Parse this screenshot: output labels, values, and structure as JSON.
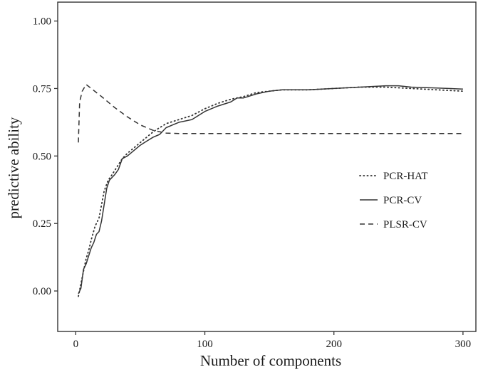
{
  "chart_data": {
    "type": "line",
    "title": "",
    "xlabel": "Number of components",
    "ylabel": "predictive ability",
    "xlim": [
      -14,
      310
    ],
    "ylim": [
      -0.15,
      1.07
    ],
    "x_ticks": [
      0,
      100,
      200,
      300
    ],
    "x_tick_labels": [
      "0",
      "100",
      "200",
      "300"
    ],
    "y_ticks": [
      0,
      0.25,
      0.5,
      0.75,
      1.0
    ],
    "y_tick_labels": [
      "0.00",
      "0.25",
      "0.50",
      "0.75",
      "1.00"
    ],
    "grid": false,
    "legend_position": "right",
    "series": [
      {
        "name": "PCR-HAT",
        "style": "dotted",
        "color": "#333333",
        "points": [
          [
            2,
            -0.02
          ],
          [
            5,
            0.05
          ],
          [
            8,
            0.12
          ],
          [
            10,
            0.15
          ],
          [
            12,
            0.19
          ],
          [
            15,
            0.24
          ],
          [
            18,
            0.27
          ],
          [
            20,
            0.32
          ],
          [
            22,
            0.37
          ],
          [
            25,
            0.41
          ],
          [
            28,
            0.43
          ],
          [
            32,
            0.46
          ],
          [
            36,
            0.49
          ],
          [
            40,
            0.51
          ],
          [
            45,
            0.53
          ],
          [
            50,
            0.55
          ],
          [
            55,
            0.57
          ],
          [
            60,
            0.59
          ],
          [
            70,
            0.62
          ],
          [
            80,
            0.635
          ],
          [
            90,
            0.65
          ],
          [
            100,
            0.675
          ],
          [
            110,
            0.695
          ],
          [
            120,
            0.71
          ],
          [
            130,
            0.72
          ],
          [
            140,
            0.735
          ],
          [
            150,
            0.74
          ],
          [
            160,
            0.745
          ],
          [
            180,
            0.745
          ],
          [
            200,
            0.75
          ],
          [
            220,
            0.755
          ],
          [
            240,
            0.755
          ],
          [
            260,
            0.75
          ],
          [
            280,
            0.745
          ],
          [
            300,
            0.74
          ]
        ]
      },
      {
        "name": "PCR-CV",
        "style": "solid",
        "color": "#333333",
        "points": [
          [
            2,
            -0.01
          ],
          [
            4,
            0.01
          ],
          [
            6,
            0.08
          ],
          [
            8,
            0.1
          ],
          [
            10,
            0.13
          ],
          [
            12,
            0.16
          ],
          [
            14,
            0.18
          ],
          [
            16,
            0.21
          ],
          [
            18,
            0.22
          ],
          [
            20,
            0.26
          ],
          [
            22,
            0.32
          ],
          [
            24,
            0.38
          ],
          [
            26,
            0.41
          ],
          [
            30,
            0.43
          ],
          [
            33,
            0.45
          ],
          [
            36,
            0.49
          ],
          [
            40,
            0.5
          ],
          [
            45,
            0.52
          ],
          [
            50,
            0.54
          ],
          [
            55,
            0.555
          ],
          [
            60,
            0.57
          ],
          [
            65,
            0.58
          ],
          [
            70,
            0.605
          ],
          [
            75,
            0.615
          ],
          [
            80,
            0.625
          ],
          [
            90,
            0.635
          ],
          [
            100,
            0.665
          ],
          [
            110,
            0.685
          ],
          [
            120,
            0.7
          ],
          [
            125,
            0.715
          ],
          [
            130,
            0.715
          ],
          [
            140,
            0.73
          ],
          [
            150,
            0.74
          ],
          [
            160,
            0.745
          ],
          [
            180,
            0.745
          ],
          [
            200,
            0.75
          ],
          [
            220,
            0.755
          ],
          [
            240,
            0.76
          ],
          [
            250,
            0.76
          ],
          [
            260,
            0.755
          ],
          [
            280,
            0.752
          ],
          [
            300,
            0.748
          ]
        ]
      },
      {
        "name": "PLSR-CV",
        "style": "dashed",
        "color": "#333333",
        "points": [
          [
            2,
            0.55
          ],
          [
            3,
            0.7
          ],
          [
            5,
            0.74
          ],
          [
            8,
            0.765
          ],
          [
            12,
            0.75
          ],
          [
            20,
            0.72
          ],
          [
            30,
            0.68
          ],
          [
            40,
            0.645
          ],
          [
            50,
            0.615
          ],
          [
            60,
            0.595
          ],
          [
            70,
            0.585
          ],
          [
            80,
            0.583
          ],
          [
            100,
            0.583
          ],
          [
            150,
            0.583
          ],
          [
            200,
            0.583
          ],
          [
            250,
            0.583
          ],
          [
            300,
            0.583
          ]
        ]
      }
    ]
  }
}
